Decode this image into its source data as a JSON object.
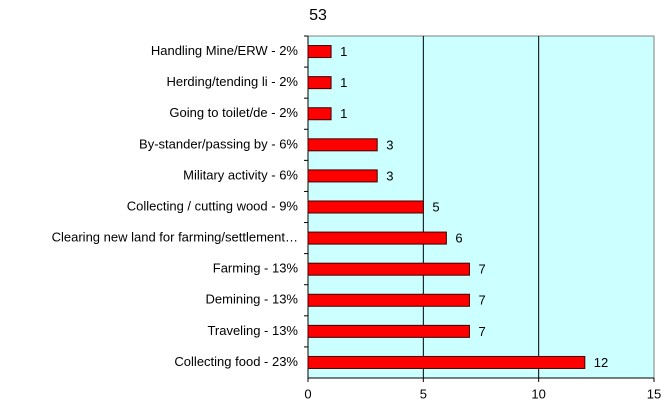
{
  "chart_data": {
    "type": "bar",
    "orientation": "horizontal",
    "title": "53",
    "categories": [
      "Handling Mine/ERW - 2%",
      "Herding/tending li - 2%",
      "Going to toilet/de - 2%",
      "By-stander/passing by - 6%",
      "Military activity - 6%",
      "Collecting / cutting wood - 9%",
      "Clearing new land for farming/settlement…",
      "Farming - 13%",
      "Demining - 13%",
      "Traveling - 13%",
      "Collecting food - 23%"
    ],
    "values": [
      1,
      1,
      1,
      3,
      3,
      5,
      6,
      7,
      7,
      7,
      12
    ],
    "color": "#ff0000",
    "plot_background": "#ccffff",
    "xlim": [
      0,
      15
    ],
    "xticks": [
      0,
      5,
      10,
      15
    ],
    "grid": true
  }
}
